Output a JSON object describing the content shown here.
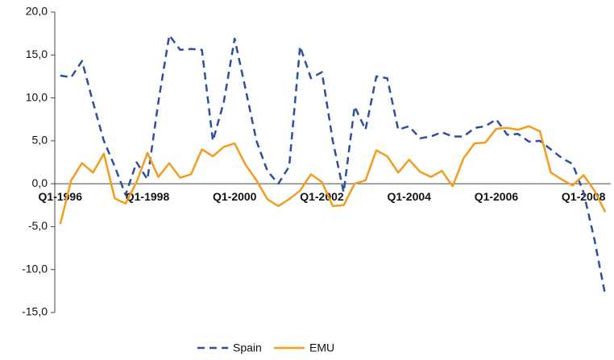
{
  "chart_data": {
    "type": "line",
    "categories": [
      "Q1-1996",
      null,
      null,
      null,
      null,
      null,
      null,
      null,
      "Q1-1998",
      null,
      null,
      null,
      null,
      null,
      null,
      null,
      "Q1-2000",
      null,
      null,
      null,
      null,
      null,
      null,
      null,
      "Q1-2002",
      null,
      null,
      null,
      null,
      null,
      null,
      null,
      "Q1-2004",
      null,
      null,
      null,
      null,
      null,
      null,
      null,
      "Q1-2006",
      null,
      null,
      null,
      null,
      null,
      null,
      null,
      "Q1-2008",
      null,
      null
    ],
    "series": [
      {
        "name": "Spain",
        "color": "#2e4f9e",
        "dash": true,
        "values": [
          12.6,
          12.4,
          14.3,
          9.5,
          5.0,
          2.0,
          -1.3,
          2.5,
          0.5,
          9.5,
          17.3,
          15.6,
          15.7,
          15.6,
          5.0,
          9.5,
          16.9,
          11.0,
          5.0,
          1.5,
          0.0,
          2.0,
          16.0,
          12.3,
          13.0,
          5.0,
          -1.0,
          9.0,
          6.3,
          12.5,
          12.3,
          6.3,
          6.7,
          5.3,
          5.5,
          6.0,
          5.5,
          5.5,
          6.5,
          6.7,
          7.5,
          5.7,
          5.8,
          4.9,
          5.0,
          4.0,
          3.0,
          2.3,
          -1.0,
          -6.5,
          -13.0
        ]
      },
      {
        "name": "EMU",
        "color": "#f39c1e",
        "dash": false,
        "values": [
          -4.7,
          0.4,
          2.4,
          1.3,
          3.5,
          -1.7,
          -2.3,
          0.2,
          3.6,
          0.8,
          2.4,
          0.7,
          1.1,
          4.0,
          3.2,
          4.3,
          4.7,
          2.2,
          0.4,
          -1.8,
          -2.6,
          -1.8,
          -0.8,
          1.1,
          0.2,
          -2.6,
          -2.5,
          0.0,
          0.4,
          3.9,
          3.2,
          1.3,
          2.8,
          1.4,
          0.8,
          1.5,
          -0.3,
          3.0,
          4.7,
          4.8,
          6.4,
          6.5,
          6.3,
          6.7,
          6.1,
          1.3,
          0.5,
          -0.2,
          1.0,
          -0.8,
          -3.3
        ]
      }
    ],
    "ylim": [
      -15,
      20
    ],
    "yticks": [
      {
        "value": -15,
        "label": "-15,0"
      },
      {
        "value": -10,
        "label": "-10,0"
      },
      {
        "value": -5,
        "label": "-5,0"
      },
      {
        "value": 0,
        "label": "0,0"
      },
      {
        "value": 5,
        "label": "5,0"
      },
      {
        "value": 10,
        "label": "10,0"
      },
      {
        "value": 15,
        "label": "15,0"
      },
      {
        "value": 20,
        "label": "20,0"
      }
    ],
    "grid": false,
    "legend": "bottom"
  }
}
